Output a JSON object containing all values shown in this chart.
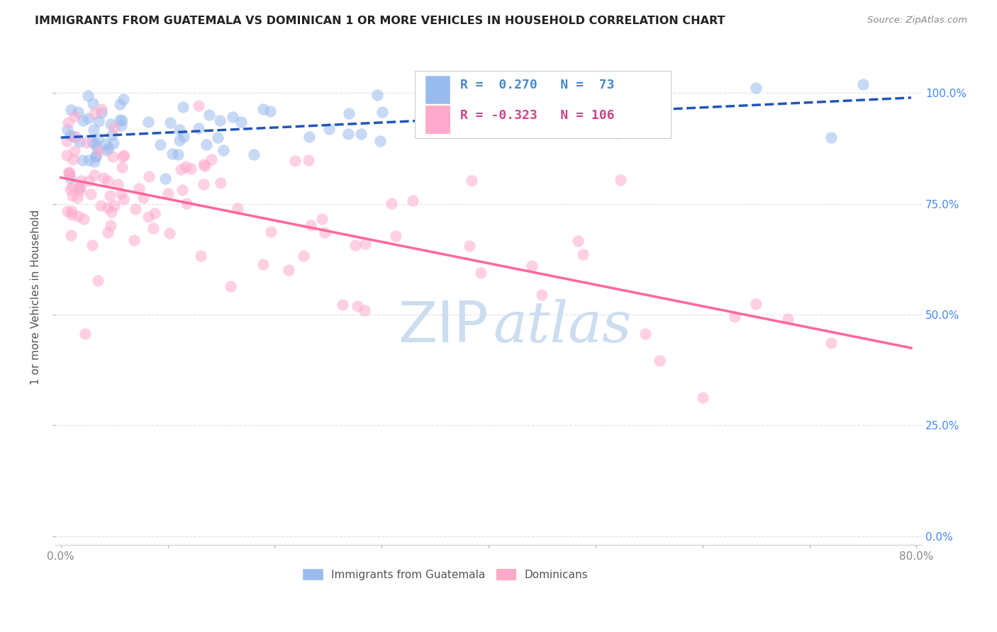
{
  "title": "IMMIGRANTS FROM GUATEMALA VS DOMINICAN 1 OR MORE VEHICLES IN HOUSEHOLD CORRELATION CHART",
  "source": "Source: ZipAtlas.com",
  "ylabel": "1 or more Vehicles in Household",
  "ytick_labels": [
    "0.0%",
    "25.0%",
    "50.0%",
    "75.0%",
    "100.0%"
  ],
  "ytick_values": [
    0.0,
    0.25,
    0.5,
    0.75,
    1.0
  ],
  "xlim": [
    -0.005,
    0.805
  ],
  "ylim": [
    -0.02,
    1.1
  ],
  "legend_label1": "Immigrants from Guatemala",
  "legend_label2": "Dominicans",
  "R_guatemala": 0.27,
  "N_guatemala": 73,
  "R_dominican": -0.323,
  "N_dominican": 106,
  "color_guatemala": "#99BBEE",
  "color_dominican": "#FFAACC",
  "trendline_color_guatemala": "#2255BB",
  "trendline_color_dominican": "#FF6699",
  "watermark_color": "#CCDDF0",
  "background_color": "#FFFFFF",
  "grid_color": "#E0E0E0",
  "xtick_color": "#888888",
  "ytick_color": "#4488FF",
  "title_color": "#222222",
  "source_color": "#888888",
  "legend_text_color_guat": "#4488CC",
  "legend_text_color_dom": "#CC4488"
}
